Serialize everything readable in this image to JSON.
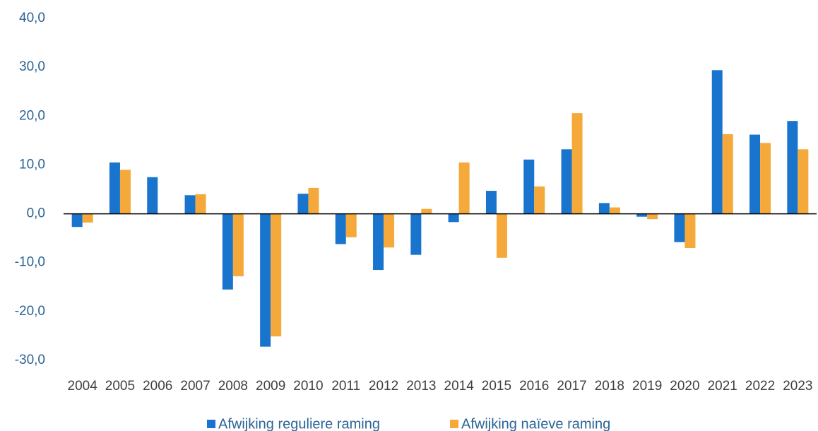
{
  "chart_data": {
    "type": "bar",
    "categories": [
      "2004",
      "2005",
      "2006",
      "2007",
      "2008",
      "2009",
      "2010",
      "2011",
      "2012",
      "2013",
      "2014",
      "2015",
      "2016",
      "2017",
      "2018",
      "2019",
      "2020",
      "2021",
      "2022",
      "2023"
    ],
    "series": [
      {
        "name": "Afwijking reguliere raming",
        "color": "#1874cd",
        "values": [
          -2.7,
          10.5,
          7.5,
          3.8,
          -15.5,
          -27.2,
          4.1,
          -6.2,
          -11.5,
          -8.4,
          -1.7,
          4.7,
          11.1,
          13.2,
          2.2,
          -0.6,
          -5.8,
          29.4,
          16.2,
          19.0
        ]
      },
      {
        "name": "Afwijking naïeve raming",
        "color": "#f4a93a",
        "values": [
          -1.8,
          9.0,
          null,
          4.0,
          -12.8,
          -25.1,
          5.3,
          -4.8,
          -6.9,
          1.0,
          10.5,
          -9.0,
          5.6,
          20.6,
          1.3,
          -1.1,
          -7.0,
          16.3,
          14.5,
          13.2
        ]
      }
    ],
    "ylim": [
      -30,
      40
    ],
    "yticks": [
      {
        "value": -30,
        "label": "-30,0"
      },
      {
        "value": -20,
        "label": "-20,0"
      },
      {
        "value": -10,
        "label": "-10,0"
      },
      {
        "value": 0,
        "label": "0,0"
      },
      {
        "value": 10,
        "label": "10,0"
      },
      {
        "value": 20,
        "label": "20,0"
      },
      {
        "value": 30,
        "label": "30,0"
      },
      {
        "value": 40,
        "label": "40,0"
      }
    ],
    "grid": false,
    "legend": "bottom"
  }
}
